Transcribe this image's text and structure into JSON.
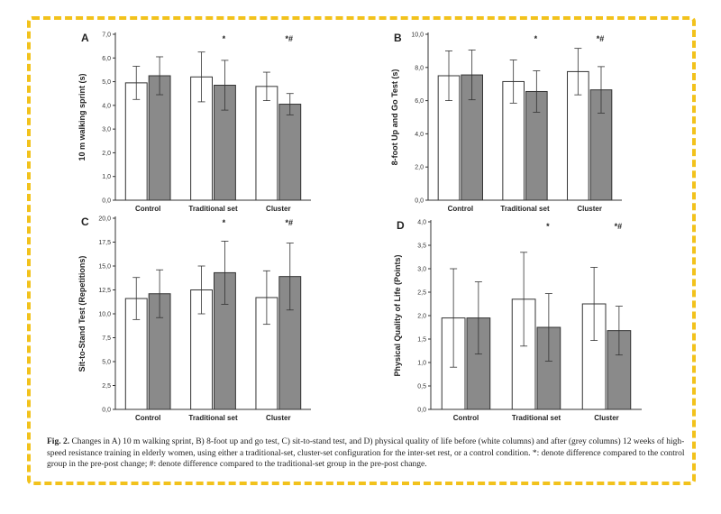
{
  "caption": {
    "label": "Fig. 2.",
    "text": "Changes in A) 10 m walking sprint, B) 8-foot up and go test, C) sit-to-stand test, and D) physical quality of life before (white columns) and after (grey columns) 12 weeks of high-speed resistance training in elderly women, using either a traditional-set, cluster-set configuration for the inter-set rest, or a control condition. *: denote difference compared to the control group in the pre-post change; #: denote difference compared to the traditional-set group in the pre-post change."
  },
  "colors": {
    "frame": "#f2c21c",
    "pre": "#ffffff",
    "post": "#8a8a8a",
    "axis": "#333333"
  },
  "chart_data": [
    {
      "type": "bar",
      "panel": "A",
      "ylabel": "10 m walking sprint (s)",
      "categories": [
        "Control",
        "Traditional set",
        "Cluster"
      ],
      "ylim": [
        0,
        7
      ],
      "yticks": [
        "0,0",
        "1,0",
        "2,0",
        "3,0",
        "4,0",
        "5,0",
        "6,0",
        "7,0"
      ],
      "series": [
        {
          "values": [
            4.95,
            5.2,
            4.8
          ],
          "errors": [
            0.7,
            1.05,
            0.6
          ]
        },
        {
          "values": [
            5.25,
            4.85,
            4.05
          ],
          "errors": [
            0.8,
            1.05,
            0.45
          ]
        }
      ],
      "annotations": [
        "",
        "*",
        "*#"
      ]
    },
    {
      "type": "bar",
      "panel": "B",
      "ylabel": "8-foot Up and Go Test (s)",
      "categories": [
        "Control",
        "Traditional set",
        "Cluster"
      ],
      "ylim": [
        0,
        10
      ],
      "yticks": [
        "0,0",
        "2,0",
        "4,0",
        "6,0",
        "8,0",
        "10,0"
      ],
      "series": [
        {
          "values": [
            7.5,
            7.15,
            7.75
          ],
          "errors": [
            1.5,
            1.3,
            1.4
          ]
        },
        {
          "values": [
            7.55,
            6.55,
            6.65
          ],
          "errors": [
            1.5,
            1.25,
            1.4
          ]
        }
      ],
      "annotations": [
        "",
        "*",
        "*#"
      ]
    },
    {
      "type": "bar",
      "panel": "C",
      "ylabel": "Sit-to-Stand Test (Repetitions)",
      "categories": [
        "Control",
        "Traditional set",
        "Cluster"
      ],
      "ylim": [
        0,
        20
      ],
      "yticks": [
        "0,0",
        "2,5",
        "5,0",
        "7,5",
        "10,0",
        "12,5",
        "15,0",
        "17,5",
        "20,0"
      ],
      "series": [
        {
          "values": [
            11.6,
            12.5,
            11.7
          ],
          "errors": [
            2.2,
            2.5,
            2.8
          ]
        },
        {
          "values": [
            12.1,
            14.3,
            13.9
          ],
          "errors": [
            2.5,
            3.3,
            3.5
          ]
        }
      ],
      "annotations": [
        "",
        "*",
        "*#"
      ]
    },
    {
      "type": "bar",
      "panel": "D",
      "ylabel": "Physical Quality of Life (Points)",
      "categories": [
        "Control",
        "Traditional set",
        "Cluster"
      ],
      "ylim": [
        0,
        4
      ],
      "yticks": [
        "0,0",
        "0,5",
        "1,0",
        "1,5",
        "2,0",
        "2,5",
        "3,0",
        "3,5",
        "4,0"
      ],
      "series": [
        {
          "values": [
            1.95,
            2.35,
            2.25
          ],
          "errors": [
            1.05,
            1.0,
            0.78
          ]
        },
        {
          "values": [
            1.95,
            1.75,
            1.68
          ],
          "errors": [
            0.77,
            0.72,
            0.52
          ]
        }
      ],
      "annotations": [
        "",
        "*",
        "*#"
      ]
    }
  ]
}
